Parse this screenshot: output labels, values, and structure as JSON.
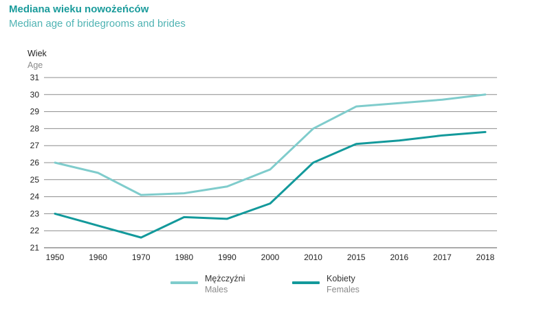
{
  "header": {
    "title": "Mediana wieku nowożeńców",
    "subtitle": "Median age of bridegrooms and brides"
  },
  "chart_data": {
    "type": "line",
    "title": "Mediana wieku nowożeńców",
    "subtitle": "Median age of bridegrooms and brides",
    "ylabel": "Wiek",
    "ylabel_en": "Age",
    "xlabel": "",
    "ylim": [
      21,
      31
    ],
    "yticks": [
      21,
      22,
      23,
      24,
      25,
      26,
      27,
      28,
      29,
      30,
      31
    ],
    "categories": [
      "1950",
      "1960",
      "1970",
      "1980",
      "1990",
      "2000",
      "2010",
      "2015",
      "2016",
      "2017",
      "2018"
    ],
    "grid": "horizontal",
    "legend_position": "bottom",
    "series": [
      {
        "name": "Mężczyźni",
        "name_en": "Males",
        "color": "#7fcccc",
        "values": [
          26.0,
          25.4,
          24.1,
          24.2,
          24.6,
          25.6,
          28.0,
          29.3,
          29.5,
          29.7,
          30.0
        ]
      },
      {
        "name": "Kobiety",
        "name_en": "Females",
        "color": "#13999b",
        "values": [
          23.0,
          22.3,
          21.6,
          22.8,
          22.7,
          23.6,
          26.0,
          27.1,
          27.3,
          27.6,
          27.8
        ]
      }
    ]
  }
}
